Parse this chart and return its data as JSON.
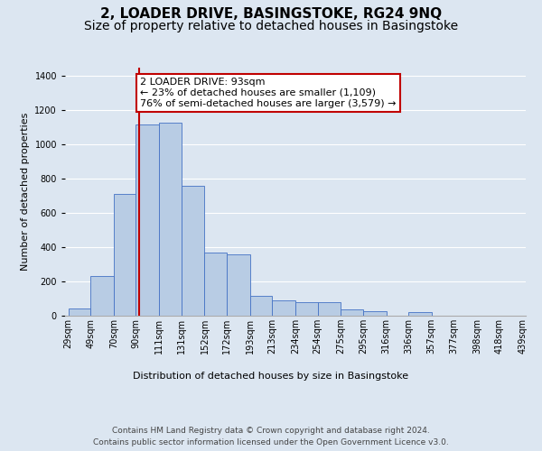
{
  "title": "2, LOADER DRIVE, BASINGSTOKE, RG24 9NQ",
  "subtitle": "Size of property relative to detached houses in Basingstoke",
  "xlabel": "Distribution of detached houses by size in Basingstoke",
  "ylabel": "Number of detached properties",
  "footnote1": "Contains HM Land Registry data © Crown copyright and database right 2024.",
  "footnote2": "Contains public sector information licensed under the Open Government Licence v3.0.",
  "property_size": 93,
  "annotation_line1": "2 LOADER DRIVE: 93sqm",
  "annotation_line2": "← 23% of detached houses are smaller (1,109)",
  "annotation_line3": "76% of semi-detached houses are larger (3,579) →",
  "bar_edges": [
    29,
    49,
    70,
    90,
    111,
    131,
    152,
    172,
    193,
    213,
    234,
    254,
    275,
    295,
    316,
    336,
    357,
    377,
    398,
    418,
    439
  ],
  "bar_heights": [
    40,
    230,
    710,
    1120,
    1130,
    760,
    370,
    360,
    115,
    90,
    80,
    80,
    35,
    25,
    0,
    20,
    0,
    0,
    0,
    0
  ],
  "bar_color": "#b8cce4",
  "bar_edge_color": "#4472c4",
  "bg_color": "#dce6f1",
  "plot_bg_color": "#dce6f1",
  "red_line_color": "#c00000",
  "annotation_box_color": "#c00000",
  "ylim": [
    0,
    1450
  ],
  "yticks": [
    0,
    200,
    400,
    600,
    800,
    1000,
    1200,
    1400
  ],
  "grid_color": "#ffffff",
  "title_fontsize": 11,
  "subtitle_fontsize": 10,
  "axis_label_fontsize": 8,
  "tick_fontsize": 7,
  "annotation_fontsize": 8,
  "footnote_fontsize": 6.5
}
